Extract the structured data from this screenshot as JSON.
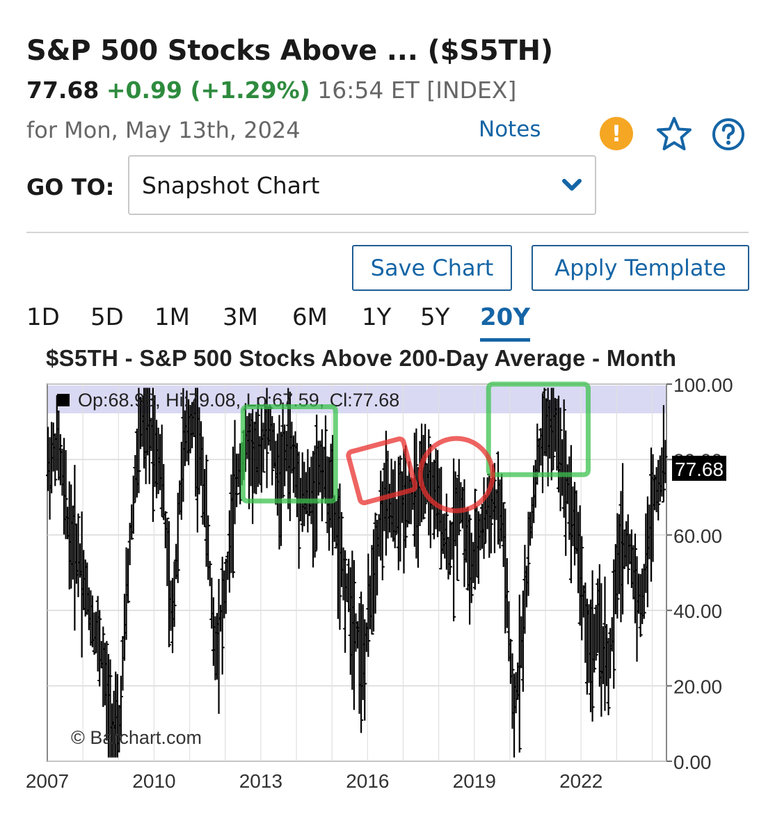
{
  "header": {
    "title": "S&P 500 Stocks Above ...  ($S5TH)",
    "last": "77.68",
    "change": "+0.99 (+1.29%)",
    "time": "16:54 ET [INDEX]",
    "date": "for Mon, May 13th, 2024",
    "notes_label": "Notes"
  },
  "icons": {
    "alert": "alert-icon",
    "alert_glyph": "!",
    "star": "star-icon",
    "help": "help-icon",
    "alert_color": "#f5a623",
    "accent_color": "#1565a6"
  },
  "goto": {
    "label": "GO TO:",
    "selected": "Snapshot Chart"
  },
  "buttons": {
    "save": "Save Chart",
    "apply": "Apply Template"
  },
  "periods": [
    "1D",
    "5D",
    "1M",
    "3M",
    "6M",
    "1Y",
    "5Y",
    "20Y"
  ],
  "active_period": "20Y",
  "chart_data": {
    "type": "bar",
    "style": "ohlc",
    "title": "$S5TH - S&P 500 Stocks Above 200-Day Average - Month",
    "ohlc_label": "Op:68.98, Hi:79.08, Lo:67.59, Cl:77.68",
    "last_value_label": "77.68",
    "last_value": 77.68,
    "watermark": "© Barchart.com",
    "ylim": [
      0,
      100
    ],
    "y_ticks": [
      "0.00",
      "20.00",
      "40.00",
      "60.00",
      "80.00",
      "100.00"
    ],
    "x_ticks": [
      "2007",
      "2010",
      "2013",
      "2016",
      "2019",
      "2022"
    ],
    "x_range": [
      2007.0,
      2024.4
    ],
    "grid": true,
    "series": [
      {
        "x": [
          2007.0,
          2007.3,
          2007.6,
          2007.9,
          2008.2,
          2008.5,
          2008.8,
          2009.0,
          2009.3,
          2009.6,
          2009.9,
          2010.2,
          2010.5,
          2010.8,
          2011.1,
          2011.4,
          2011.7,
          2012.0,
          2012.3,
          2012.6,
          2012.9,
          2013.2,
          2013.5,
          2013.8,
          2014.1,
          2014.4,
          2014.7,
          2015.0,
          2015.3,
          2015.6,
          2015.9,
          2016.2,
          2016.5,
          2016.8,
          2017.1,
          2017.4,
          2017.7,
          2018.0,
          2018.3,
          2018.6,
          2018.9,
          2019.2,
          2019.5,
          2019.8,
          2020.1,
          2020.4,
          2020.7,
          2021.0,
          2021.3,
          2021.6,
          2021.9,
          2022.2,
          2022.5,
          2022.8,
          2023.1,
          2023.4,
          2023.7,
          2024.0,
          2024.3
        ],
        "y": [
          78,
          85,
          62,
          55,
          40,
          30,
          10,
          5,
          55,
          90,
          88,
          80,
          35,
          82,
          92,
          75,
          30,
          45,
          75,
          85,
          80,
          90,
          75,
          85,
          72,
          70,
          80,
          70,
          50,
          40,
          25,
          55,
          70,
          65,
          72,
          70,
          75,
          68,
          55,
          72,
          50,
          62,
          70,
          65,
          10,
          40,
          75,
          90,
          88,
          75,
          60,
          30,
          35,
          25,
          60,
          55,
          40,
          70,
          78
        ]
      }
    ]
  }
}
